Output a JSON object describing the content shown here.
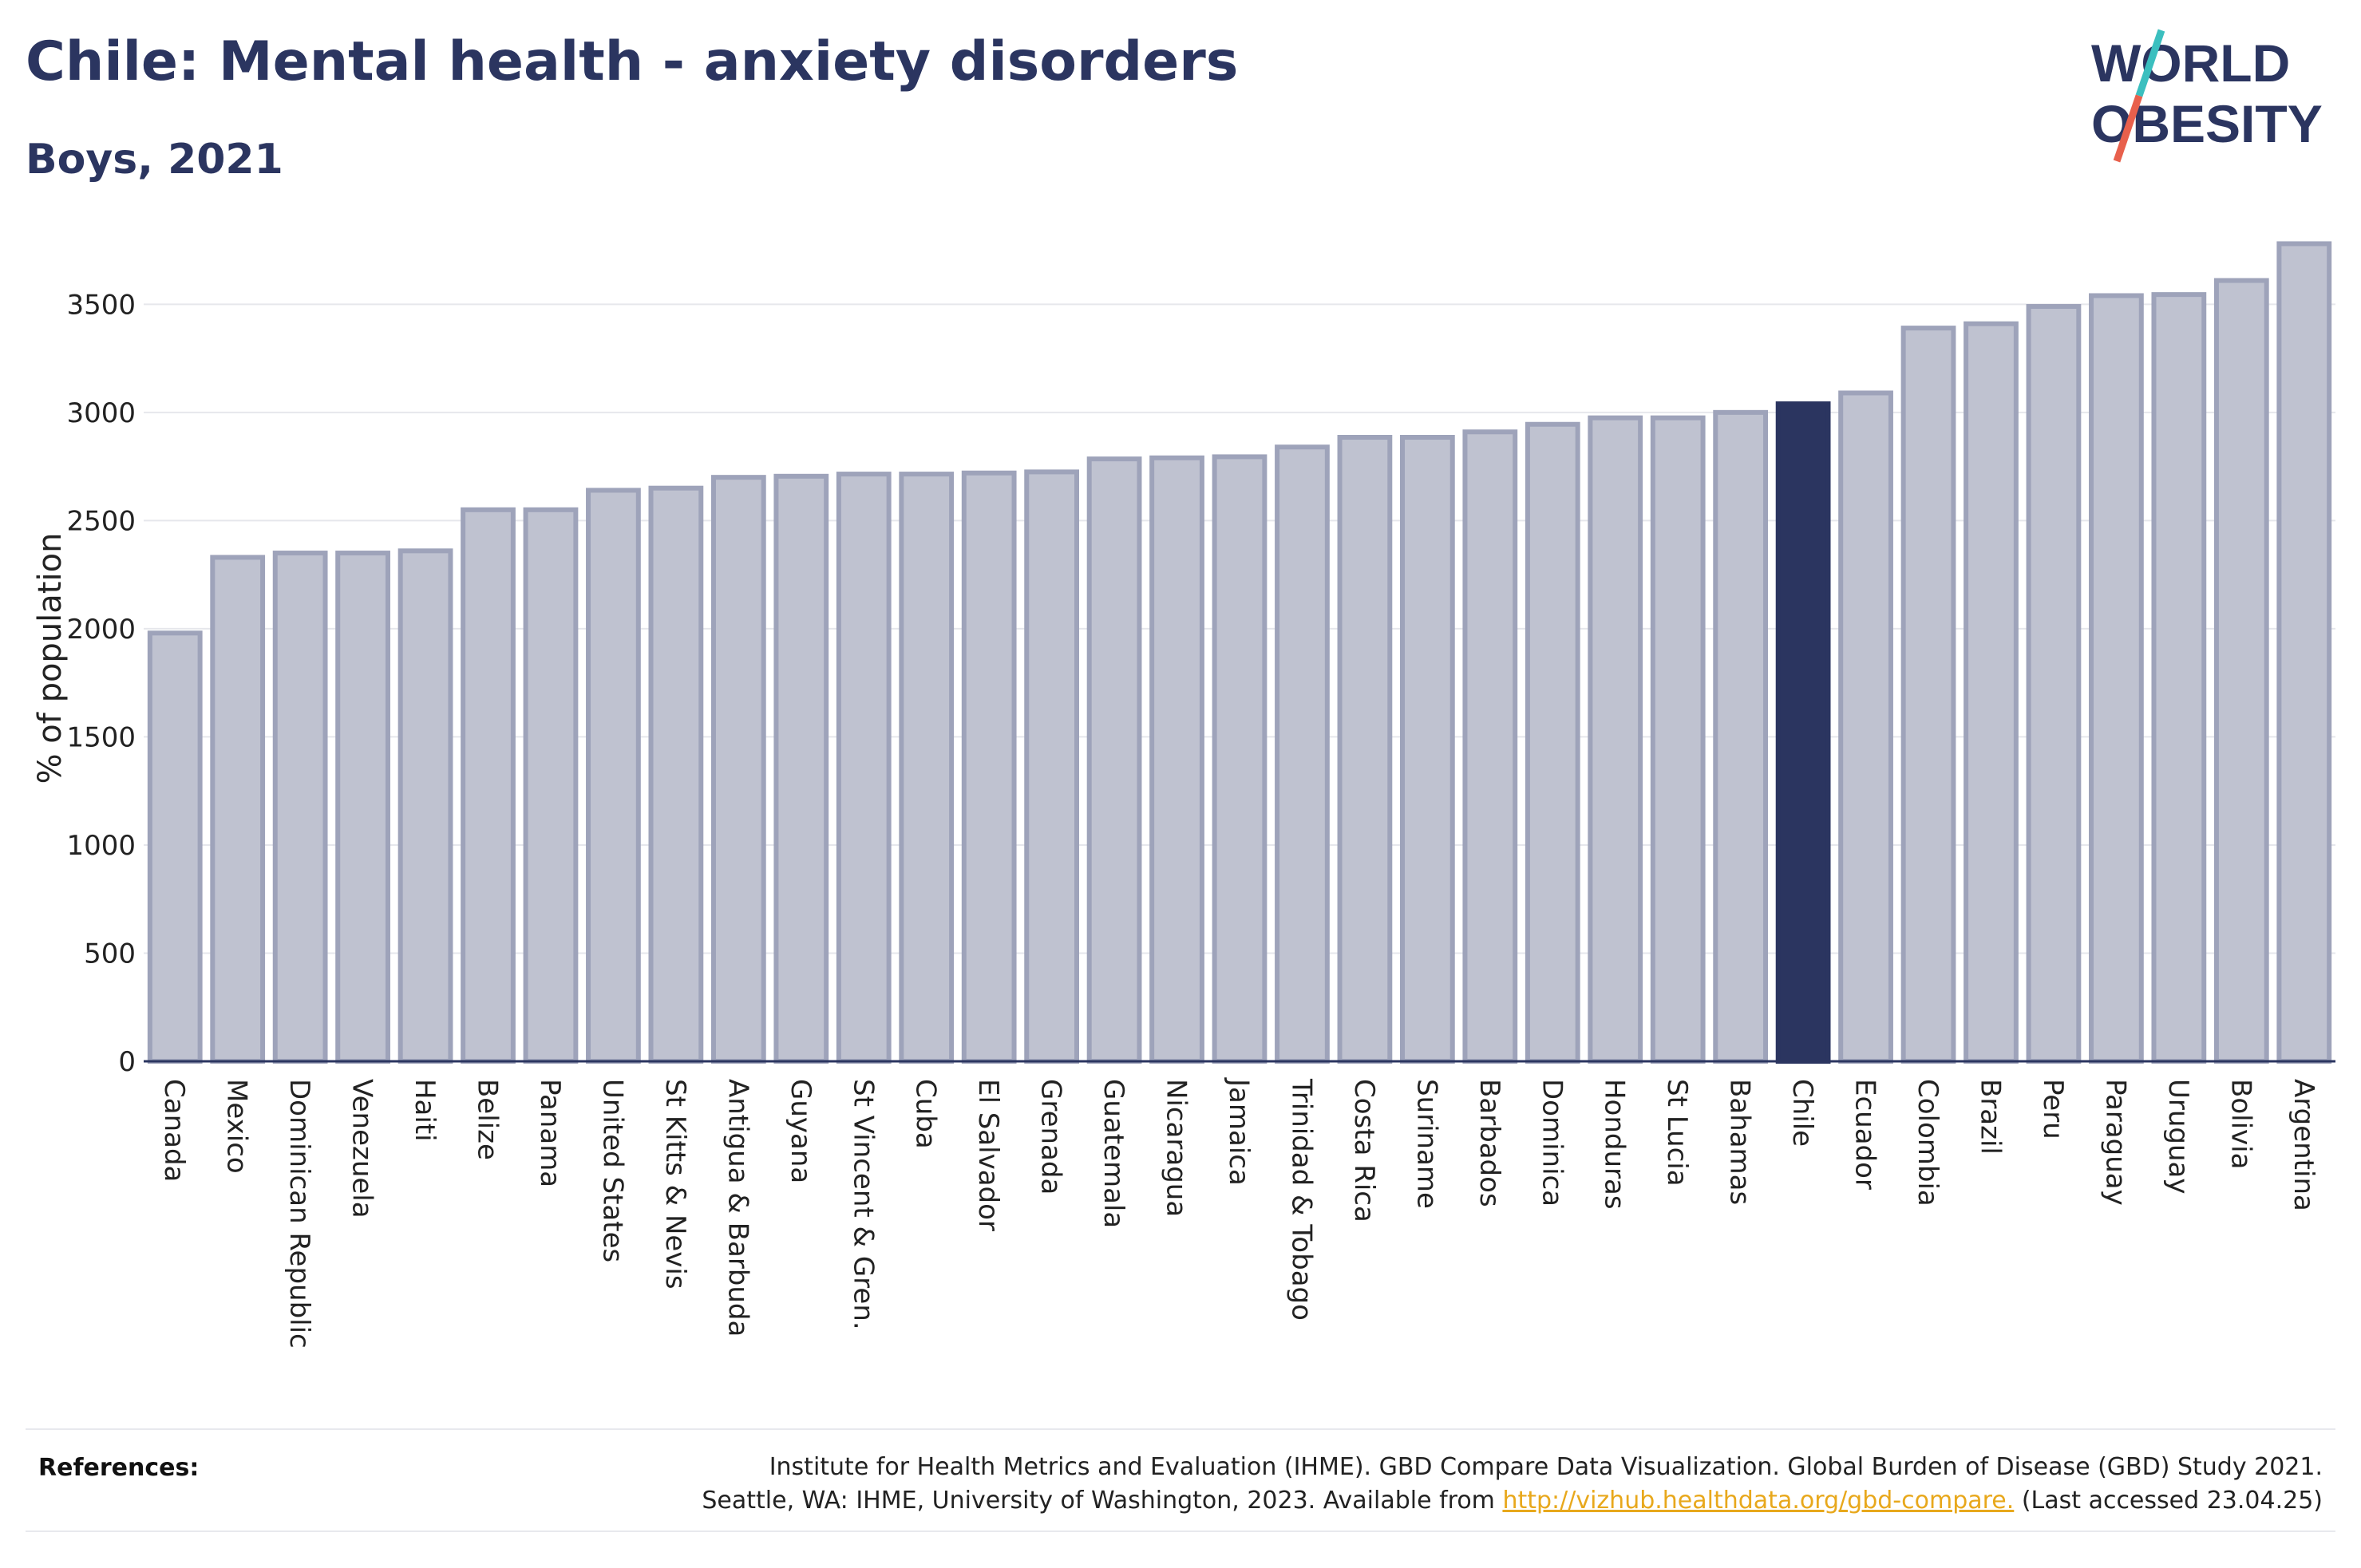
{
  "header": {
    "title": "Chile: Mental health - anxiety disorders",
    "subtitle": "Boys, 2021"
  },
  "logo": {
    "line1": "WORLD",
    "line2": "OBESITY",
    "colors": {
      "text": "#2b3560",
      "slash_top": "#3bbfbf",
      "slash_bottom": "#e8604c"
    }
  },
  "colors": {
    "bar_fill": "#bfc2d0",
    "bar_stroke": "#9ea3ba",
    "highlight_fill": "#2b3560",
    "grid": "#e6e7ec",
    "axis": "#2b3560"
  },
  "chart_data": {
    "type": "bar",
    "ylabel": "% of population",
    "ylim": [
      0,
      3800
    ],
    "yticks": [
      0,
      500,
      1000,
      1500,
      2000,
      2500,
      3000,
      3500
    ],
    "grid": true,
    "highlight": "Chile",
    "categories": [
      "Canada",
      "Mexico",
      "Dominican Republic",
      "Venezuela",
      "Haiti",
      "Belize",
      "Panama",
      "United States",
      "St Kitts & Nevis",
      "Antigua & Barbuda",
      "Guyana",
      "St Vincent & Gren.",
      "Cuba",
      "El Salvador",
      "Grenada",
      "Guatemala",
      "Nicaragua",
      "Jamaica",
      "Trinidad & Tobago",
      "Costa Rica",
      "Suriname",
      "Barbados",
      "Dominica",
      "Honduras",
      "St Lucia",
      "Bahamas",
      "Chile",
      "Ecuador",
      "Colombia",
      "Brazil",
      "Peru",
      "Paraguay",
      "Uruguay",
      "Bolivia",
      "Argentina"
    ],
    "values": [
      1980,
      2330,
      2350,
      2350,
      2360,
      2550,
      2550,
      2640,
      2650,
      2700,
      2705,
      2715,
      2715,
      2720,
      2725,
      2785,
      2790,
      2795,
      2840,
      2885,
      2885,
      2910,
      2945,
      2975,
      2975,
      3000,
      3040,
      3090,
      3390,
      3410,
      3490,
      3540,
      3545,
      3610,
      3780
    ]
  },
  "references": {
    "label": "References:",
    "line1": "Institute for Health Metrics and Evaluation (IHME). GBD Compare Data Visualization. Global Burden of Disease (GBD) Study 2021.",
    "line2_prefix": "Seattle, WA: IHME, University of Washington, 2023. Available from ",
    "link": "http://vizhub.healthdata.org/gbd-compare.",
    "line2_suffix": " (Last accessed 23.04.25)"
  }
}
